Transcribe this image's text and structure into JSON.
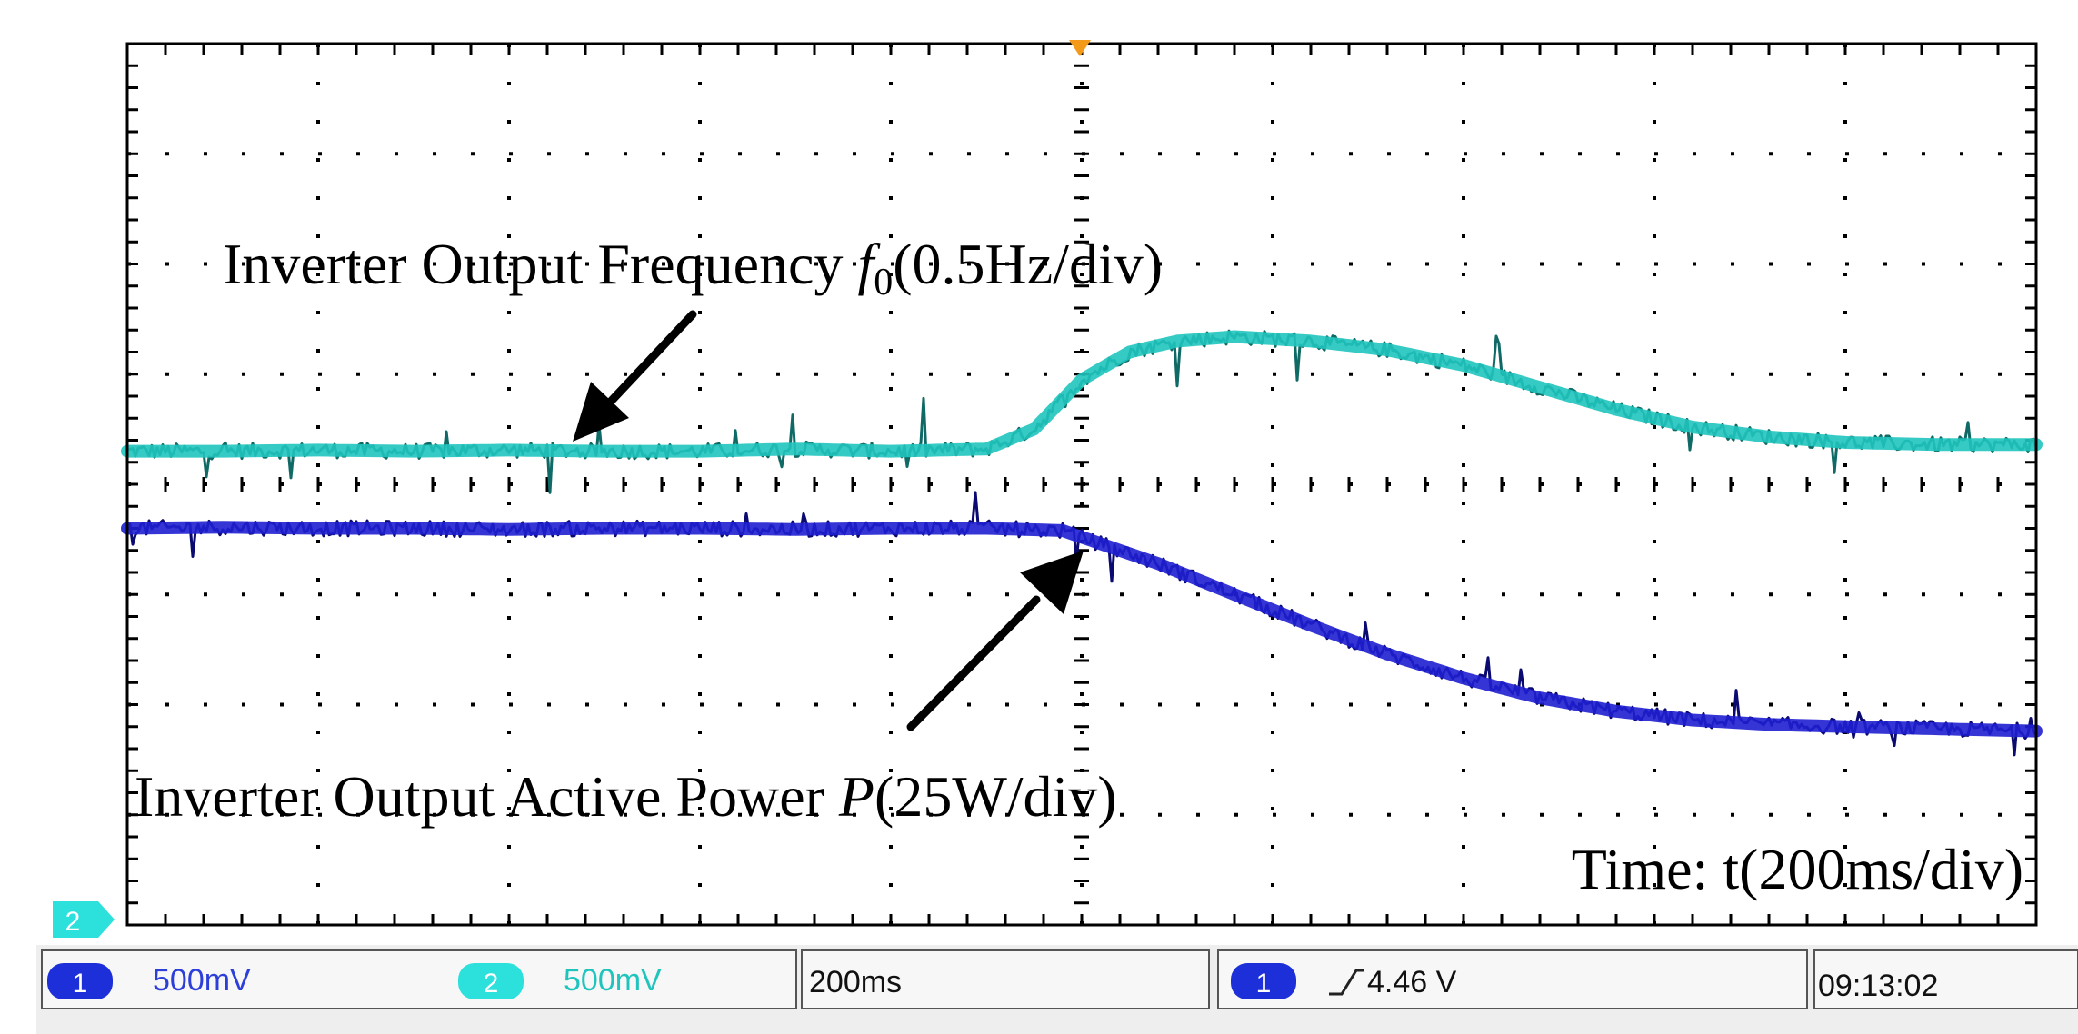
{
  "colors": {
    "frequency_trace": "#1fc4bc",
    "frequency_edge": "#0f6a66",
    "power_trace": "#1f1fd0",
    "power_edge": "#0a0a70",
    "grid": "#000000",
    "channel1_badge": "#1c2fd8",
    "channel2_badge": "#2ce0dc"
  },
  "chart_data": {
    "type": "line",
    "title": "",
    "xlabel": "Time: t(200ms/div)",
    "ylabel": "",
    "x_divisions": 10,
    "y_divisions": 8,
    "xlim": [
      0,
      10
    ],
    "ylim": [
      0,
      8
    ],
    "x_unit": "div",
    "y_unit": "div",
    "trigger_position_div": 5.0,
    "series": [
      {
        "name": "Inverter Output Frequency",
        "label_prefix": "Inverter Output Frequency ",
        "label_symbol": "f",
        "label_subscript": "0",
        "label_suffix": "(0.5Hz/div)",
        "scale": "0.5Hz/div",
        "x": [
          0,
          0.5,
          1,
          1.5,
          2,
          2.5,
          3,
          3.5,
          4,
          4.5,
          4.75,
          5.0,
          5.25,
          5.5,
          5.8,
          6.2,
          6.6,
          7.0,
          7.4,
          7.8,
          8.2,
          8.6,
          9.0,
          9.5,
          10
        ],
        "values": [
          4.3,
          4.3,
          4.31,
          4.3,
          4.31,
          4.3,
          4.3,
          4.32,
          4.3,
          4.32,
          4.5,
          4.95,
          5.2,
          5.3,
          5.34,
          5.3,
          5.22,
          5.08,
          4.88,
          4.68,
          4.52,
          4.43,
          4.38,
          4.36,
          4.36
        ]
      },
      {
        "name": "Inverter Output Active Power",
        "label_prefix": "Inverter Output Active Power ",
        "label_symbol": "P",
        "label_subscript": "",
        "label_suffix": "(25W/div)",
        "scale": "25W/div",
        "x": [
          0,
          0.5,
          1,
          1.5,
          2,
          2.5,
          3,
          3.5,
          4,
          4.5,
          4.9,
          5.1,
          5.4,
          5.8,
          6.2,
          6.6,
          7.0,
          7.4,
          7.8,
          8.2,
          8.6,
          9.0,
          9.5,
          10
        ],
        "values": [
          3.6,
          3.61,
          3.6,
          3.6,
          3.59,
          3.6,
          3.6,
          3.59,
          3.6,
          3.6,
          3.58,
          3.46,
          3.28,
          3.0,
          2.72,
          2.46,
          2.24,
          2.06,
          1.94,
          1.86,
          1.82,
          1.8,
          1.78,
          1.76
        ]
      }
    ],
    "annotations": [
      {
        "text": "Inverter Output Frequency f0(0.5Hz/div)",
        "points_to_div": [
          2.35,
          4.3
        ]
      },
      {
        "text": "Inverter Output Active Power P(25W/div)",
        "points_to_div": [
          5.05,
          3.4
        ]
      }
    ]
  },
  "status_bar": {
    "channel1_number": "1",
    "channel1_scale": "500mV",
    "channel2_number": "2",
    "channel2_scale": "500mV",
    "timebase": "200ms",
    "trigger_channel": "1",
    "trigger_level": "4.46 V",
    "clock": "09:13:02"
  },
  "markers": {
    "channel2_ground": "2"
  }
}
